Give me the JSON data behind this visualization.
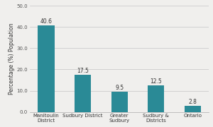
{
  "categories": [
    "Manitoulin\nDistrict",
    "Sudbury District",
    "Greater\nSudbury",
    "Sudbury &\nDistricts",
    "Ontario"
  ],
  "values": [
    40.6,
    17.5,
    9.5,
    12.5,
    2.8
  ],
  "bar_color": "#2a8a96",
  "ylabel": "Percentage (%) Population",
  "ylim": [
    0,
    50
  ],
  "yticks": [
    0.0,
    10.0,
    20.0,
    30.0,
    40.0,
    50.0
  ],
  "background_color": "#f0efed",
  "plot_bg_color": "#f0efed",
  "label_fontsize": 5.0,
  "ylabel_fontsize": 5.5,
  "tick_fontsize": 5.0,
  "value_fontsize": 5.5,
  "bar_width": 0.45
}
